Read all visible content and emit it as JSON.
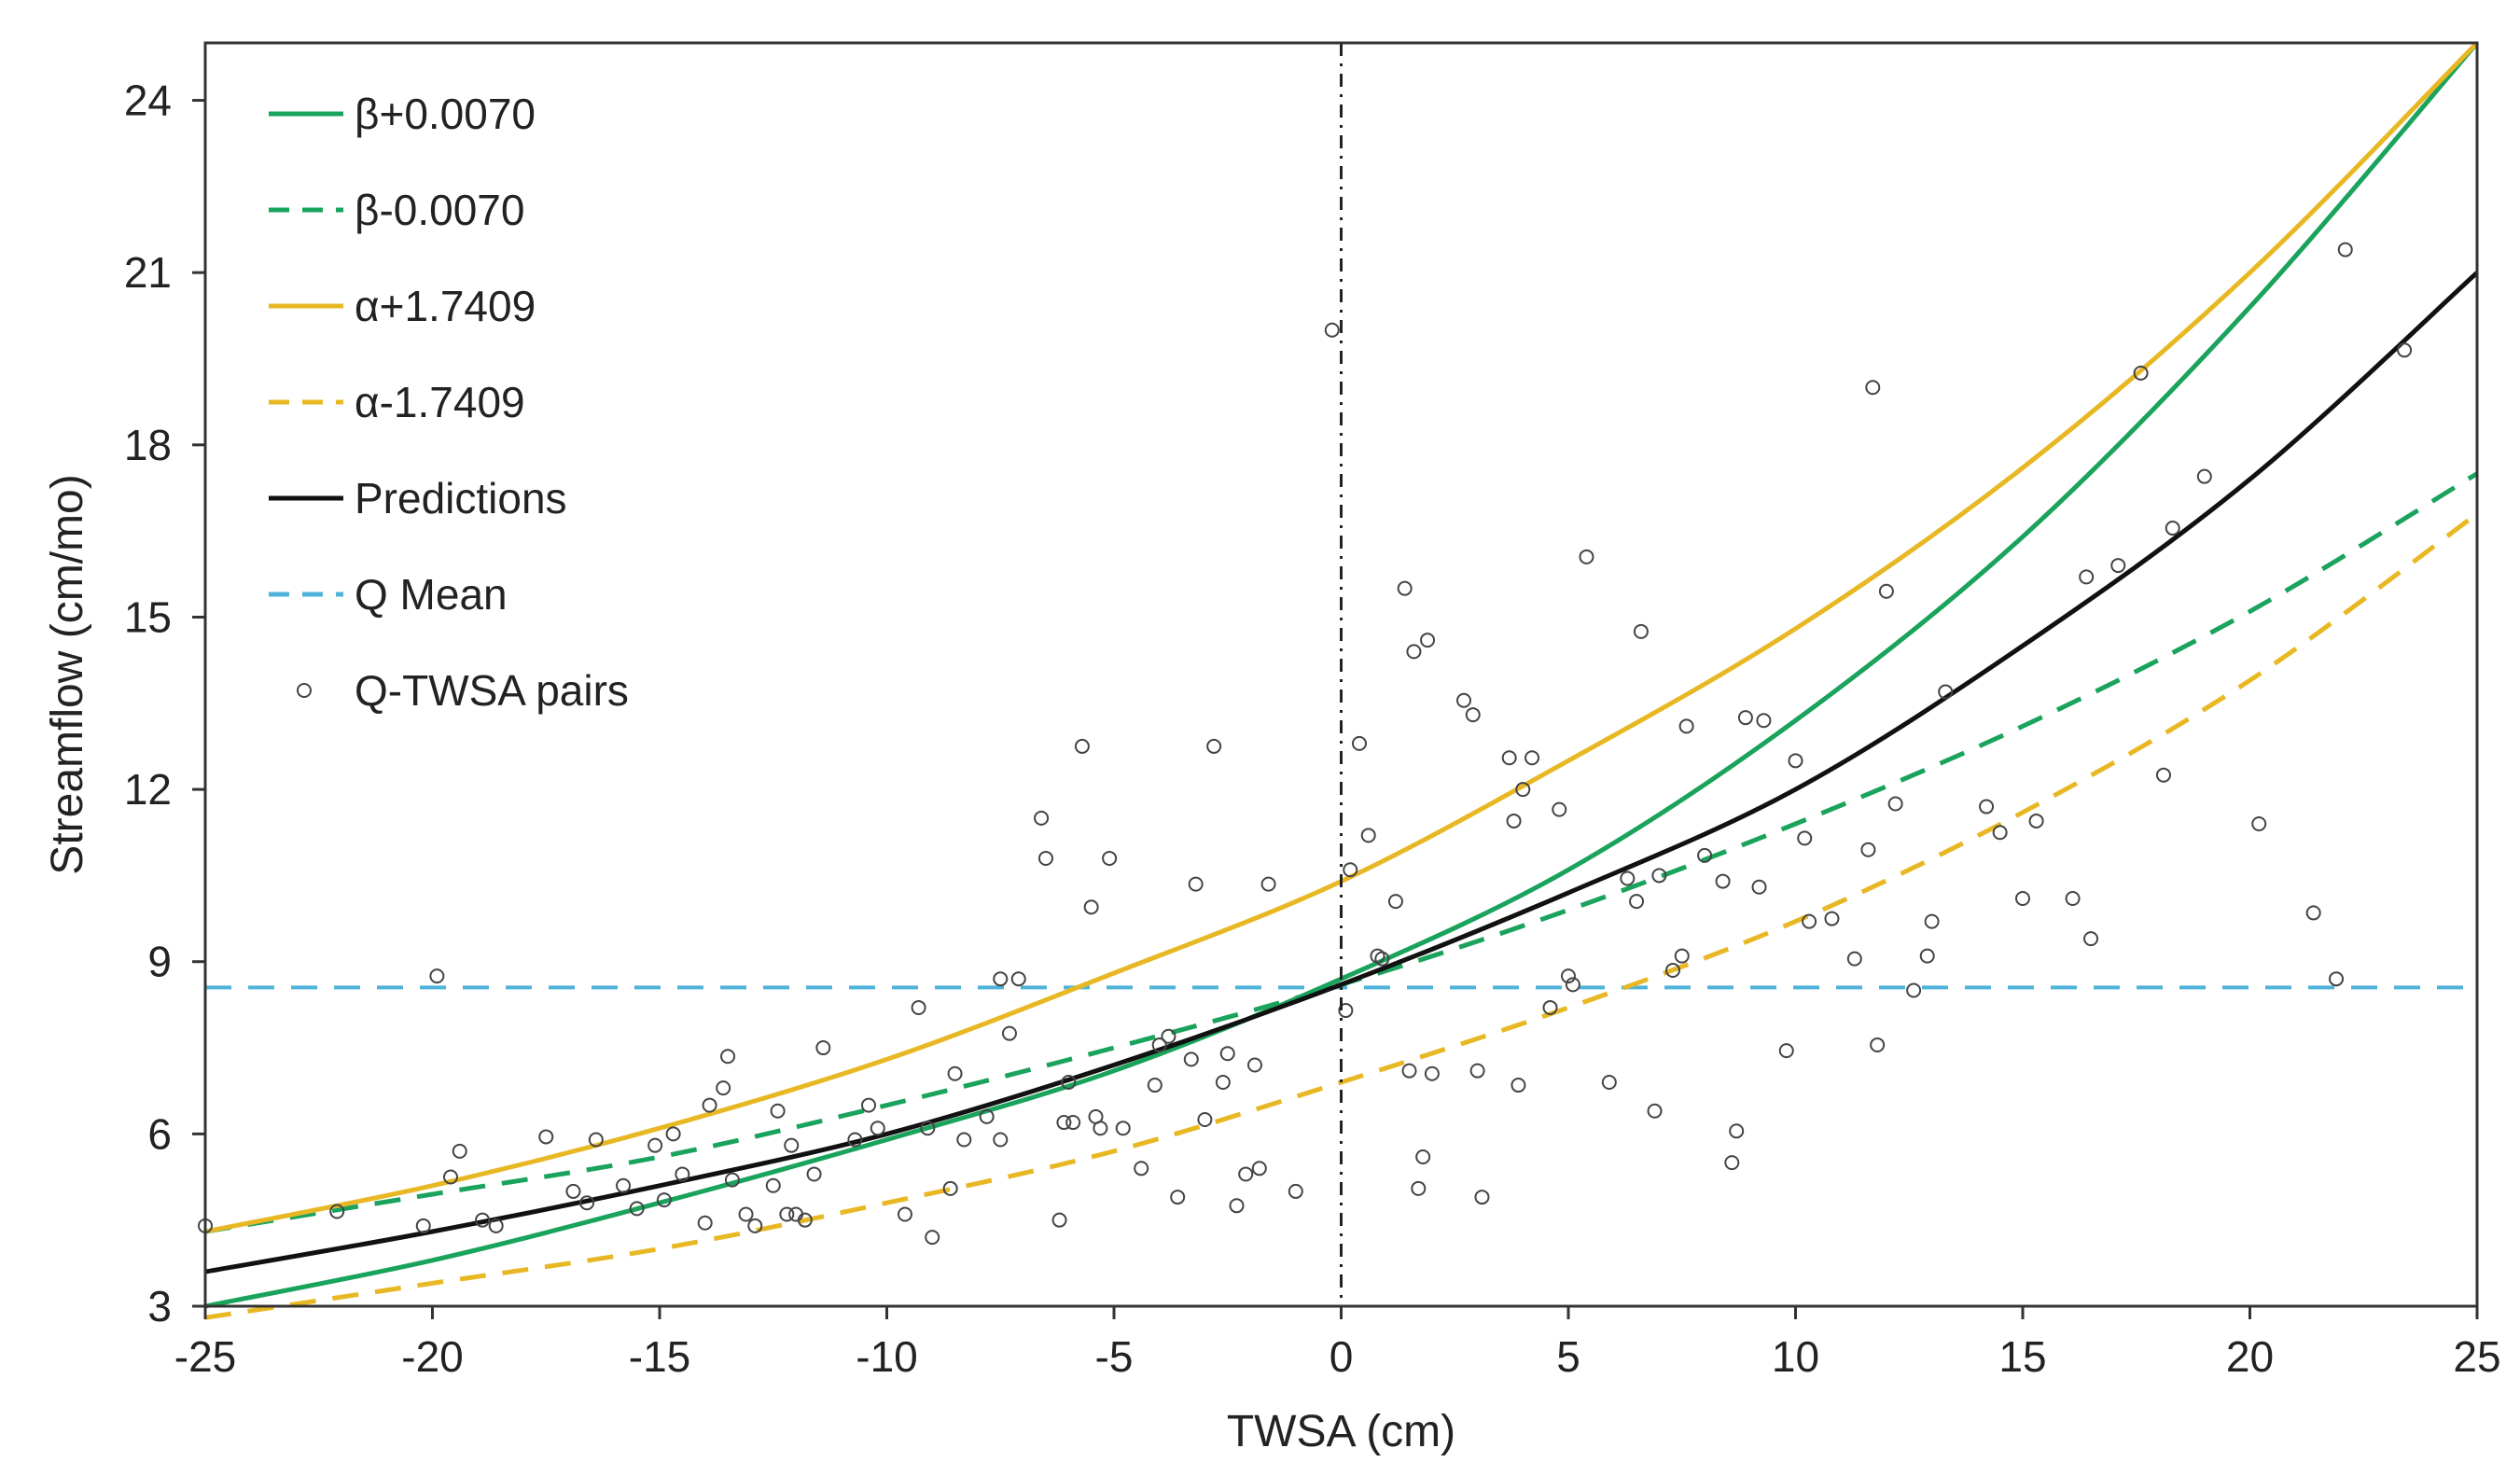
{
  "chart_data": {
    "type": "line",
    "title": "",
    "xlabel": "TWSA (cm)",
    "ylabel": "Streamflow (cm/mo)",
    "xlim": [
      -25,
      25
    ],
    "ylim": [
      3,
      25
    ],
    "xticks": [
      -25,
      -20,
      -15,
      -10,
      -5,
      0,
      5,
      10,
      15,
      20,
      25
    ],
    "yticks": [
      3,
      6,
      9,
      12,
      15,
      18,
      21,
      24
    ],
    "grid": false,
    "legend_position": "top-left",
    "vertical_reference_x": 0,
    "series": [
      {
        "name": "β+0.0070",
        "kind": "line",
        "color": "#1aa35c",
        "dash": "solid",
        "x": [
          -25,
          -20,
          -15,
          -10,
          -5,
          0,
          5,
          10,
          15,
          20,
          25
        ],
        "y": [
          3.0,
          3.8,
          4.8,
          5.9,
          7.1,
          8.7,
          10.6,
          13.2,
          16.4,
          20.4,
          25.0
        ]
      },
      {
        "name": "β-0.0070",
        "kind": "line",
        "color": "#1aa35c",
        "dash": "dashed",
        "x": [
          -25,
          -20,
          -15,
          -10,
          -5,
          0,
          5,
          10,
          15,
          20,
          25
        ],
        "y": [
          4.3,
          4.95,
          5.6,
          6.5,
          7.5,
          8.6,
          9.9,
          11.4,
          13.1,
          15.1,
          17.5
        ]
      },
      {
        "name": "α+1.7409",
        "kind": "line",
        "color": "#e8b824",
        "dash": "solid",
        "x": [
          -25,
          -20,
          -15,
          -10,
          -5,
          0,
          5,
          10,
          15,
          20,
          25
        ],
        "y": [
          4.3,
          5.1,
          6.1,
          7.3,
          8.8,
          10.4,
          12.5,
          14.8,
          17.6,
          21.0,
          25.0
        ]
      },
      {
        "name": "α-1.7409",
        "kind": "line",
        "color": "#e8b824",
        "dash": "dashed",
        "x": [
          -25,
          -20,
          -15,
          -10,
          -5,
          0,
          5,
          10,
          15,
          20,
          25
        ],
        "y": [
          2.8,
          3.4,
          4.0,
          4.8,
          5.7,
          6.9,
          8.2,
          9.7,
          11.6,
          13.9,
          16.8
        ]
      },
      {
        "name": "Predictions",
        "kind": "line",
        "color": "#111111",
        "dash": "solid",
        "x": [
          -25,
          -20,
          -15,
          -10,
          -5,
          0,
          5,
          10,
          15,
          20,
          25
        ],
        "y": [
          3.6,
          4.3,
          5.1,
          6.0,
          7.2,
          8.6,
          10.2,
          12.0,
          14.5,
          17.4,
          21.0
        ]
      },
      {
        "name": "Q Mean",
        "kind": "hline",
        "color": "#4fb3d9",
        "dash": "dashed",
        "x": [
          -25,
          25
        ],
        "y": [
          8.55,
          8.55
        ]
      },
      {
        "name": "Q-TWSA pairs",
        "kind": "scatter",
        "color": "#444444",
        "points": [
          [
            -25,
            4.4
          ],
          [
            -22.1,
            4.65
          ],
          [
            -20.2,
            4.4
          ],
          [
            -19.9,
            8.75
          ],
          [
            -19.6,
            5.25
          ],
          [
            -19.4,
            5.7
          ],
          [
            -18.9,
            4.5
          ],
          [
            -18.6,
            4.4
          ],
          [
            -17.5,
            5.95
          ],
          [
            -16.9,
            5.0
          ],
          [
            -16.6,
            4.8
          ],
          [
            -16.4,
            5.9
          ],
          [
            -15.8,
            5.1
          ],
          [
            -15.5,
            4.7
          ],
          [
            -15.1,
            5.8
          ],
          [
            -14.9,
            4.85
          ],
          [
            -14.7,
            6.0
          ],
          [
            -14.5,
            5.3
          ],
          [
            -14.0,
            4.45
          ],
          [
            -13.9,
            6.5
          ],
          [
            -13.6,
            6.8
          ],
          [
            -13.4,
            5.2
          ],
          [
            -13.1,
            4.6
          ],
          [
            -12.9,
            4.4
          ],
          [
            -12.5,
            5.1
          ],
          [
            -12.2,
            4.6
          ],
          [
            -12.0,
            4.6
          ],
          [
            -11.8,
            4.5
          ],
          [
            -11.6,
            5.3
          ],
          [
            -11.4,
            7.5
          ],
          [
            -12.4,
            6.4
          ],
          [
            -12.1,
            5.8
          ],
          [
            -13.5,
            7.35
          ],
          [
            -10.7,
            5.9
          ],
          [
            -10.4,
            6.5
          ],
          [
            -10.2,
            6.1
          ],
          [
            -9.6,
            4.6
          ],
          [
            -9.3,
            8.2
          ],
          [
            -9.1,
            6.1
          ],
          [
            -9.0,
            4.2
          ],
          [
            -8.6,
            5.05
          ],
          [
            -8.5,
            7.05
          ],
          [
            -8.3,
            5.9
          ],
          [
            -7.8,
            6.3
          ],
          [
            -7.5,
            5.9
          ],
          [
            -7.3,
            7.75
          ],
          [
            -7.1,
            8.7
          ],
          [
            -6.6,
            11.5
          ],
          [
            -6.5,
            10.8
          ],
          [
            -6.2,
            4.5
          ],
          [
            -6.1,
            6.2
          ],
          [
            -5.9,
            6.2
          ],
          [
            -5.7,
            12.75
          ],
          [
            -5.5,
            9.95
          ],
          [
            -5.4,
            6.3
          ],
          [
            -5.3,
            6.1
          ],
          [
            -5.1,
            10.8
          ],
          [
            -4.8,
            6.1
          ],
          [
            -4.4,
            5.4
          ],
          [
            -4.1,
            6.85
          ],
          [
            -3.8,
            7.7
          ],
          [
            -3.6,
            4.9
          ],
          [
            -3.3,
            7.3
          ],
          [
            -3.2,
            10.35
          ],
          [
            -3.0,
            6.25
          ],
          [
            -2.8,
            12.75
          ],
          [
            -2.6,
            6.9
          ],
          [
            -2.5,
            7.4
          ],
          [
            -2.3,
            4.75
          ],
          [
            -2.1,
            5.3
          ],
          [
            -1.9,
            7.2
          ],
          [
            -1.8,
            5.4
          ],
          [
            -1.6,
            10.35
          ],
          [
            -1.0,
            5.0
          ],
          [
            -0.2,
            20.0
          ],
          [
            0.1,
            8.15
          ],
          [
            0.2,
            10.6
          ],
          [
            0.4,
            12.8
          ],
          [
            0.6,
            11.2
          ],
          [
            0.8,
            9.1
          ],
          [
            1.2,
            10.05
          ],
          [
            1.4,
            15.5
          ],
          [
            1.5,
            7.1
          ],
          [
            1.6,
            14.4
          ],
          [
            1.7,
            5.05
          ],
          [
            1.8,
            5.6
          ],
          [
            1.9,
            14.6
          ],
          [
            2.0,
            7.05
          ],
          [
            2.7,
            13.55
          ],
          [
            2.9,
            13.3
          ],
          [
            3.0,
            7.1
          ],
          [
            3.1,
            4.9
          ],
          [
            3.7,
            12.55
          ],
          [
            3.8,
            11.45
          ],
          [
            3.9,
            6.85
          ],
          [
            4.0,
            12.0
          ],
          [
            4.2,
            12.55
          ],
          [
            4.6,
            8.2
          ],
          [
            4.8,
            11.65
          ],
          [
            5.0,
            8.75
          ],
          [
            5.1,
            8.6
          ],
          [
            5.4,
            16.05
          ],
          [
            5.9,
            6.9
          ],
          [
            6.3,
            10.45
          ],
          [
            6.5,
            10.05
          ],
          [
            6.6,
            14.75
          ],
          [
            6.9,
            6.4
          ],
          [
            7.0,
            10.5
          ],
          [
            7.3,
            8.85
          ],
          [
            7.6,
            13.1
          ],
          [
            8.0,
            10.85
          ],
          [
            8.4,
            10.4
          ],
          [
            8.6,
            5.5
          ],
          [
            8.7,
            6.05
          ],
          [
            8.9,
            13.25
          ],
          [
            9.2,
            10.3
          ],
          [
            9.3,
            13.2
          ],
          [
            9.8,
            7.45
          ],
          [
            10.0,
            12.5
          ],
          [
            10.2,
            11.15
          ],
          [
            10.3,
            9.7
          ],
          [
            10.8,
            9.75
          ],
          [
            11.3,
            9.05
          ],
          [
            11.6,
            10.95
          ],
          [
            11.7,
            19.0
          ],
          [
            11.8,
            7.55
          ],
          [
            12.0,
            15.45
          ],
          [
            12.2,
            11.75
          ],
          [
            12.6,
            8.5
          ],
          [
            13.0,
            9.7
          ],
          [
            13.3,
            13.7
          ],
          [
            14.2,
            11.7
          ],
          [
            14.5,
            11.25
          ],
          [
            15.0,
            10.1
          ],
          [
            15.3,
            11.45
          ],
          [
            16.1,
            10.1
          ],
          [
            16.4,
            15.7
          ],
          [
            16.5,
            9.4
          ],
          [
            17.1,
            15.9
          ],
          [
            17.6,
            19.25
          ],
          [
            18.1,
            12.25
          ],
          [
            18.3,
            16.55
          ],
          [
            19.0,
            17.45
          ],
          [
            20.2,
            11.4
          ],
          [
            21.4,
            9.85
          ],
          [
            21.9,
            8.7
          ],
          [
            22.1,
            21.4
          ],
          [
            23.4,
            19.65
          ],
          [
            -7.5,
            8.7
          ],
          [
            -4.0,
            7.55
          ],
          [
            0.9,
            9.05
          ],
          [
            7.5,
            9.1
          ],
          [
            12.9,
            9.1
          ],
          [
            -6.0,
            6.9
          ]
        ]
      }
    ]
  }
}
